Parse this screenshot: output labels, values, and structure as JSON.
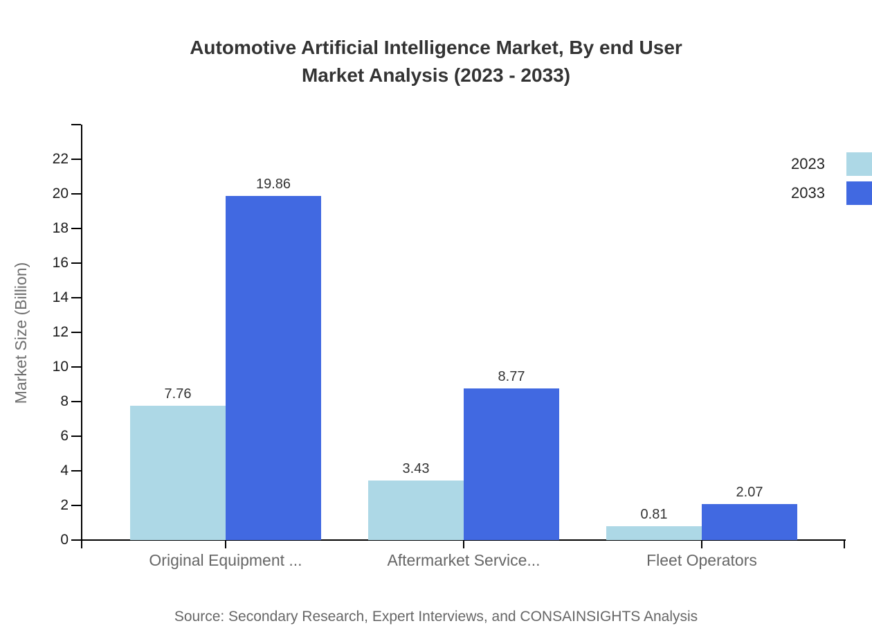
{
  "title": {
    "line1": "Automotive Artificial Intelligence Market, By end User",
    "line2": "Market Analysis (2023 - 2033)"
  },
  "chart_data": {
    "type": "bar",
    "categories": [
      "Original Equipment ...",
      "Aftermarket Service...",
      "Fleet Operators"
    ],
    "series": [
      {
        "name": "2023",
        "color": "#ADD8E6",
        "values": [
          7.76,
          3.43,
          0.81
        ]
      },
      {
        "name": "2033",
        "color": "#4169E1",
        "values": [
          19.86,
          8.77,
          2.07
        ]
      }
    ],
    "data_labels": [
      "7.76",
      "19.86",
      "3.43",
      "8.77",
      "0.81",
      "2.07"
    ],
    "xlabel": "",
    "ylabel": "Market Size (Billion)",
    "ylim": [
      0,
      24
    ],
    "y_ticks": [
      0,
      2,
      4,
      6,
      8,
      10,
      12,
      14,
      16,
      18,
      20,
      22
    ],
    "grid": false,
    "legend_position": "top-right",
    "bar_value_precision": 2
  },
  "legend": {
    "items": [
      {
        "label": "2023",
        "color": "#ADD8E6"
      },
      {
        "label": "2033",
        "color": "#4169E1"
      }
    ]
  },
  "source": {
    "text": "Source: Secondary Research, Expert Interviews, and CONSAINSIGHTS Analysis"
  },
  "colors": {
    "background": "#ffffff",
    "axis": "#000000",
    "title_text": "#333333",
    "tick_text": "#1a1a1a",
    "category_text": "#666666",
    "data_label_text": "#333333",
    "source_text": "#666666",
    "series_2023": "#ADD8E6",
    "series_2033": "#4169E1"
  }
}
